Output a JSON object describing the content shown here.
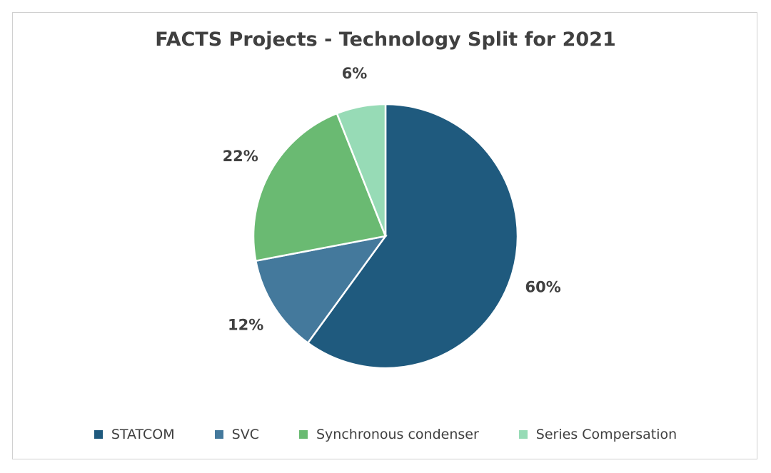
{
  "chart_data": {
    "type": "pie",
    "title": "FACTS Projects - Technology Split for 2021",
    "categories": [
      "STATCOM",
      "SVC",
      "Synchronous condenser",
      "Series Compersation"
    ],
    "values": [
      60,
      12,
      22,
      6
    ],
    "labels": [
      "60%",
      "12%",
      "22%",
      "6%"
    ],
    "colors": [
      "#1f5a7e",
      "#44799c",
      "#6aba72",
      "#97dbb6"
    ],
    "legend_position": "bottom"
  }
}
